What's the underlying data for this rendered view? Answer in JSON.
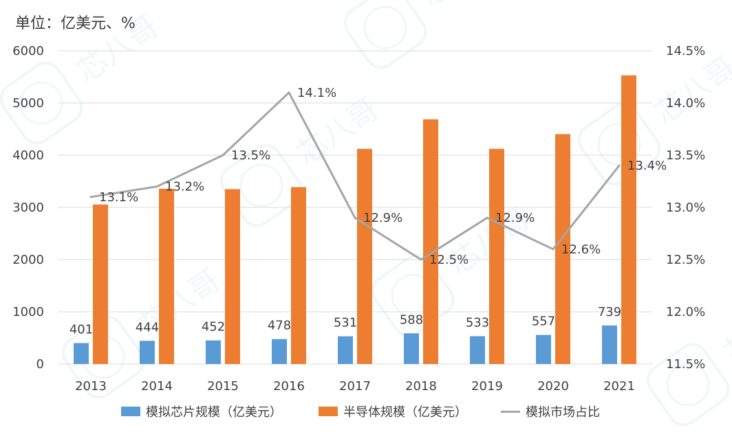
{
  "unit_label": "单位：亿美元、%",
  "colors": {
    "analog_bar": "#5b9bd5",
    "semi_bar": "#ed7d31",
    "share_line": "#a5a5a5",
    "grid": "#d9d9d9"
  },
  "chart_data": {
    "type": "bar",
    "categories": [
      "2013",
      "2014",
      "2015",
      "2016",
      "2017",
      "2018",
      "2019",
      "2020",
      "2021"
    ],
    "series": [
      {
        "name": "模拟芯片规模（亿美元）",
        "type": "bar",
        "axis": "left",
        "values": [
          401,
          444,
          452,
          478,
          531,
          588,
          533,
          557,
          739
        ],
        "labels": [
          "401",
          "444",
          "452",
          "478",
          "531",
          "588",
          "533",
          "557",
          "739"
        ]
      },
      {
        "name": "半导体规模（亿美元）",
        "type": "bar",
        "axis": "left",
        "values": [
          3056,
          3358,
          3350,
          3389,
          4122,
          4688,
          4123,
          4404,
          5530
        ]
      },
      {
        "name": "模拟市场占比",
        "type": "line",
        "axis": "right",
        "values": [
          13.1,
          13.2,
          13.5,
          14.1,
          12.9,
          12.5,
          12.9,
          12.6,
          13.4
        ],
        "labels": [
          "13.1%",
          "13.2%",
          "13.5%",
          "14.1%",
          "12.9%",
          "12.5%",
          "12.9%",
          "12.6%",
          "13.4%"
        ]
      }
    ],
    "ylim": [
      0,
      6000
    ],
    "yticks": [
      "0",
      "1000",
      "2000",
      "3000",
      "4000",
      "5000",
      "6000"
    ],
    "y2lim": [
      11.5,
      14.5
    ],
    "y2ticks": [
      "11.5%",
      "12.0%",
      "12.5%",
      "13.0%",
      "13.5%",
      "14.0%",
      "14.5%"
    ],
    "grid": true,
    "legend_position": "bottom"
  },
  "watermark": "芯八哥"
}
